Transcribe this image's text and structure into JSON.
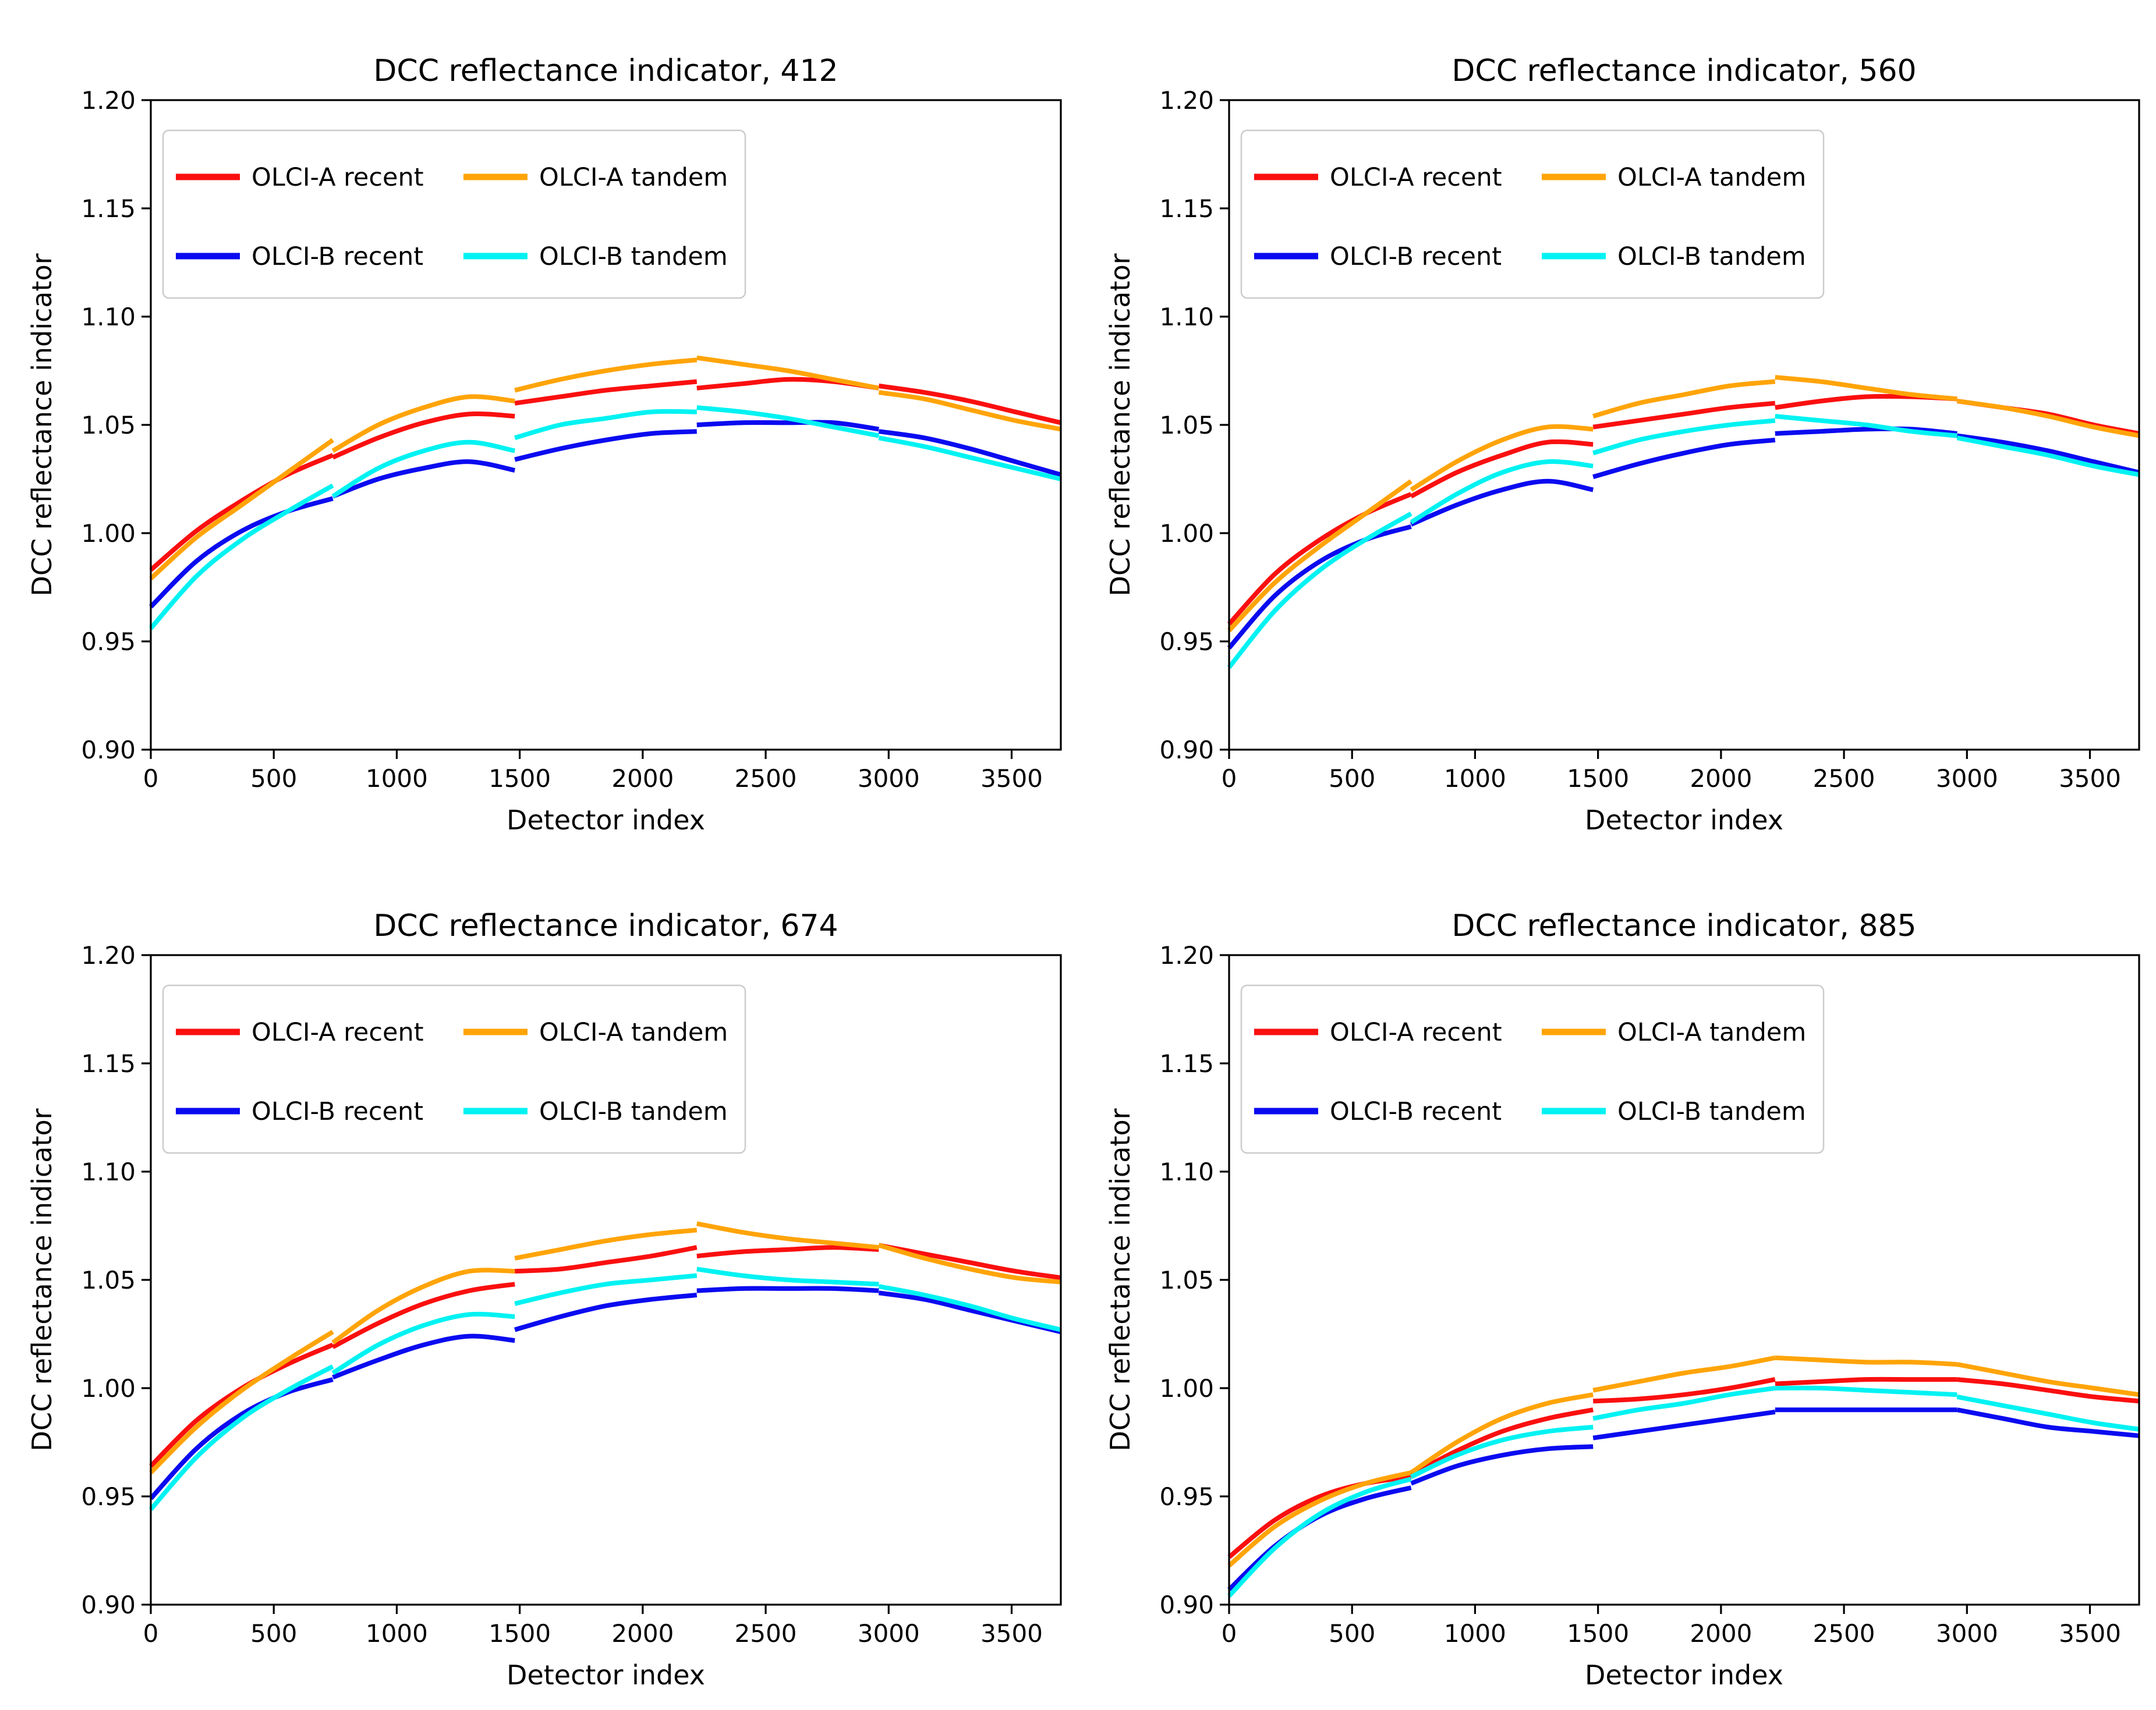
{
  "figure": {
    "background": "#ffffff",
    "grid": "2x2"
  },
  "legend": {
    "position": "upper left",
    "border_color": "#cccccc",
    "entries": [
      {
        "label": "OLCI-A recent",
        "color": "#fa0f0f"
      },
      {
        "label": "OLCI-B recent",
        "color": "#0a0af0"
      },
      {
        "label": "OLCI-A tandem",
        "color": "#ffa408"
      },
      {
        "label": "OLCI-B tandem",
        "color": "#00f2f2"
      }
    ]
  },
  "segment_x": [
    [
      0,
      185,
      370,
      555,
      740
    ],
    [
      740,
      925,
      1110,
      1295,
      1480
    ],
    [
      1480,
      1665,
      1850,
      2035,
      2220
    ],
    [
      2220,
      2405,
      2590,
      2775,
      2960
    ],
    [
      2960,
      3145,
      3330,
      3515,
      3700
    ]
  ],
  "chart_data": [
    {
      "type": "line",
      "band": "412",
      "title": "DCC reflectance indicator, 412",
      "xlabel": "Detector index",
      "ylabel": "DCC reflectance indicator",
      "xlim": [
        0,
        3700
      ],
      "ylim": [
        0.9,
        1.2
      ],
      "xticks": [
        0,
        500,
        1000,
        1500,
        2000,
        2500,
        3000,
        3500
      ],
      "ytick_labels": [
        "0.90",
        "0.95",
        "1.00",
        "1.05",
        "1.10",
        "1.15",
        "1.20"
      ],
      "series": [
        {
          "name": "OLCI-A recent",
          "color": "#fa0f0f",
          "segments_y": [
            [
              0.983,
              1.001,
              1.015,
              1.027,
              1.036
            ],
            [
              1.035,
              1.044,
              1.051,
              1.055,
              1.054
            ],
            [
              1.06,
              1.063,
              1.066,
              1.068,
              1.07
            ],
            [
              1.067,
              1.069,
              1.071,
              1.07,
              1.067
            ],
            [
              1.068,
              1.065,
              1.061,
              1.056,
              1.051
            ]
          ]
        },
        {
          "name": "OLCI-B recent",
          "color": "#0a0af0",
          "segments_y": [
            [
              0.966,
              0.987,
              1.001,
              1.01,
              1.016
            ],
            [
              1.017,
              1.025,
              1.03,
              1.033,
              1.029
            ],
            [
              1.034,
              1.039,
              1.043,
              1.046,
              1.047
            ],
            [
              1.05,
              1.051,
              1.051,
              1.051,
              1.048
            ],
            [
              1.047,
              1.044,
              1.039,
              1.033,
              1.027
            ]
          ]
        },
        {
          "name": "OLCI-A tandem",
          "color": "#ffa408",
          "segments_y": [
            [
              0.979,
              0.998,
              1.013,
              1.028,
              1.043
            ],
            [
              1.038,
              1.05,
              1.058,
              1.063,
              1.061
            ],
            [
              1.066,
              1.071,
              1.075,
              1.078,
              1.08
            ],
            [
              1.081,
              1.078,
              1.075,
              1.071,
              1.067
            ],
            [
              1.065,
              1.062,
              1.057,
              1.052,
              1.048
            ]
          ]
        },
        {
          "name": "OLCI-B tandem",
          "color": "#00f2f2",
          "segments_y": [
            [
              0.956,
              0.98,
              0.997,
              1.01,
              1.022
            ],
            [
              1.017,
              1.03,
              1.038,
              1.042,
              1.038
            ],
            [
              1.044,
              1.05,
              1.053,
              1.056,
              1.056
            ],
            [
              1.058,
              1.056,
              1.053,
              1.049,
              1.045
            ],
            [
              1.044,
              1.04,
              1.035,
              1.03,
              1.025
            ]
          ]
        }
      ]
    },
    {
      "type": "line",
      "band": "560",
      "title": "DCC reflectance indicator, 560",
      "xlabel": "Detector index",
      "ylabel": "DCC reflectance indicator",
      "xlim": [
        0,
        3700
      ],
      "ylim": [
        0.9,
        1.2
      ],
      "xticks": [
        0,
        500,
        1000,
        1500,
        2000,
        2500,
        3000,
        3500
      ],
      "ytick_labels": [
        "0.90",
        "0.95",
        "1.00",
        "1.05",
        "1.10",
        "1.15",
        "1.20"
      ],
      "series": [
        {
          "name": "OLCI-A recent",
          "color": "#fa0f0f",
          "segments_y": [
            [
              0.958,
              0.981,
              0.997,
              1.009,
              1.018
            ],
            [
              1.017,
              1.028,
              1.036,
              1.042,
              1.041
            ],
            [
              1.049,
              1.052,
              1.055,
              1.058,
              1.06
            ],
            [
              1.058,
              1.061,
              1.063,
              1.063,
              1.062
            ],
            [
              1.061,
              1.058,
              1.055,
              1.05,
              1.046
            ]
          ]
        },
        {
          "name": "OLCI-B recent",
          "color": "#0a0af0",
          "segments_y": [
            [
              0.947,
              0.971,
              0.987,
              0.997,
              1.003
            ],
            [
              1.004,
              1.013,
              1.02,
              1.024,
              1.02
            ],
            [
              1.026,
              1.032,
              1.037,
              1.041,
              1.043
            ],
            [
              1.046,
              1.047,
              1.048,
              1.048,
              1.046
            ],
            [
              1.045,
              1.042,
              1.038,
              1.033,
              1.028
            ]
          ]
        },
        {
          "name": "OLCI-A tandem",
          "color": "#ffa408",
          "segments_y": [
            [
              0.955,
              0.977,
              0.994,
              1.009,
              1.024
            ],
            [
              1.02,
              1.033,
              1.043,
              1.049,
              1.048
            ],
            [
              1.054,
              1.06,
              1.064,
              1.068,
              1.07
            ],
            [
              1.072,
              1.07,
              1.067,
              1.064,
              1.062
            ],
            [
              1.061,
              1.058,
              1.054,
              1.049,
              1.045
            ]
          ]
        },
        {
          "name": "OLCI-B tandem",
          "color": "#00f2f2",
          "segments_y": [
            [
              0.938,
              0.964,
              0.983,
              0.997,
              1.009
            ],
            [
              1.005,
              1.018,
              1.028,
              1.033,
              1.031
            ],
            [
              1.037,
              1.043,
              1.047,
              1.05,
              1.052
            ],
            [
              1.054,
              1.052,
              1.05,
              1.047,
              1.045
            ],
            [
              1.044,
              1.04,
              1.036,
              1.031,
              1.027
            ]
          ]
        }
      ]
    },
    {
      "type": "line",
      "band": "674",
      "title": "DCC reflectance indicator, 674",
      "xlabel": "Detector index",
      "ylabel": "DCC reflectance indicator",
      "xlim": [
        0,
        3700
      ],
      "ylim": [
        0.9,
        1.2
      ],
      "xticks": [
        0,
        500,
        1000,
        1500,
        2000,
        2500,
        3000,
        3500
      ],
      "ytick_labels": [
        "0.90",
        "0.95",
        "1.00",
        "1.05",
        "1.10",
        "1.15",
        "1.20"
      ],
      "series": [
        {
          "name": "OLCI-A recent",
          "color": "#fa0f0f",
          "segments_y": [
            [
              0.964,
              0.985,
              1.0,
              1.011,
              1.02
            ],
            [
              1.019,
              1.03,
              1.039,
              1.045,
              1.048
            ],
            [
              1.054,
              1.055,
              1.058,
              1.061,
              1.065
            ],
            [
              1.061,
              1.063,
              1.064,
              1.065,
              1.064
            ],
            [
              1.066,
              1.062,
              1.058,
              1.054,
              1.051
            ]
          ]
        },
        {
          "name": "OLCI-B recent",
          "color": "#0a0af0",
          "segments_y": [
            [
              0.949,
              0.972,
              0.988,
              0.998,
              1.004
            ],
            [
              1.005,
              1.013,
              1.02,
              1.024,
              1.022
            ],
            [
              1.027,
              1.033,
              1.038,
              1.041,
              1.043
            ],
            [
              1.045,
              1.046,
              1.046,
              1.046,
              1.045
            ],
            [
              1.044,
              1.041,
              1.036,
              1.031,
              1.026
            ]
          ]
        },
        {
          "name": "OLCI-A tandem",
          "color": "#ffa408",
          "segments_y": [
            [
              0.961,
              0.982,
              0.999,
              1.013,
              1.026
            ],
            [
              1.021,
              1.036,
              1.047,
              1.054,
              1.054
            ],
            [
              1.06,
              1.064,
              1.068,
              1.071,
              1.073
            ],
            [
              1.076,
              1.072,
              1.069,
              1.067,
              1.065
            ],
            [
              1.066,
              1.06,
              1.055,
              1.051,
              1.049
            ]
          ]
        },
        {
          "name": "OLCI-B tandem",
          "color": "#00f2f2",
          "segments_y": [
            [
              0.944,
              0.968,
              0.986,
              0.999,
              1.01
            ],
            [
              1.007,
              1.02,
              1.029,
              1.034,
              1.033
            ],
            [
              1.039,
              1.044,
              1.048,
              1.05,
              1.052
            ],
            [
              1.055,
              1.052,
              1.05,
              1.049,
              1.048
            ],
            [
              1.047,
              1.043,
              1.038,
              1.032,
              1.027
            ]
          ]
        }
      ]
    },
    {
      "type": "line",
      "band": "885",
      "title": "DCC reflectance indicator, 885",
      "xlabel": "Detector index",
      "ylabel": "DCC reflectance indicator",
      "xlim": [
        0,
        3700
      ],
      "ylim": [
        0.9,
        1.2
      ],
      "xticks": [
        0,
        500,
        1000,
        1500,
        2000,
        2500,
        3000,
        3500
      ],
      "ytick_labels": [
        "0.90",
        "0.95",
        "1.00",
        "1.05",
        "1.10",
        "1.15",
        "1.20"
      ],
      "series": [
        {
          "name": "OLCI-A recent",
          "color": "#fa0f0f",
          "segments_y": [
            [
              0.922,
              0.939,
              0.95,
              0.956,
              0.959
            ],
            [
              0.96,
              0.971,
              0.98,
              0.986,
              0.99
            ],
            [
              0.994,
              0.995,
              0.997,
              1.0,
              1.004
            ],
            [
              1.002,
              1.003,
              1.004,
              1.004,
              1.004
            ],
            [
              1.004,
              1.002,
              0.999,
              0.996,
              0.994
            ]
          ]
        },
        {
          "name": "OLCI-B recent",
          "color": "#0a0af0",
          "segments_y": [
            [
              0.907,
              0.927,
              0.941,
              0.949,
              0.954
            ],
            [
              0.956,
              0.964,
              0.969,
              0.972,
              0.973
            ],
            [
              0.977,
              0.98,
              0.983,
              0.986,
              0.989
            ],
            [
              0.99,
              0.99,
              0.99,
              0.99,
              0.99
            ],
            [
              0.99,
              0.986,
              0.982,
              0.98,
              0.978
            ]
          ]
        },
        {
          "name": "OLCI-A tandem",
          "color": "#ffa408",
          "segments_y": [
            [
              0.918,
              0.936,
              0.948,
              0.956,
              0.961
            ],
            [
              0.961,
              0.975,
              0.986,
              0.993,
              0.997
            ],
            [
              0.999,
              1.003,
              1.007,
              1.01,
              1.014
            ],
            [
              1.014,
              1.013,
              1.012,
              1.012,
              1.011
            ],
            [
              1.011,
              1.007,
              1.003,
              1.0,
              0.997
            ]
          ]
        },
        {
          "name": "OLCI-B tandem",
          "color": "#00f2f2",
          "segments_y": [
            [
              0.904,
              0.926,
              0.942,
              0.952,
              0.958
            ],
            [
              0.959,
              0.969,
              0.976,
              0.98,
              0.982
            ],
            [
              0.986,
              0.99,
              0.993,
              0.997,
              1.0
            ],
            [
              1.0,
              1.0,
              0.999,
              0.998,
              0.997
            ],
            [
              0.996,
              0.992,
              0.988,
              0.984,
              0.981
            ]
          ]
        }
      ]
    }
  ]
}
